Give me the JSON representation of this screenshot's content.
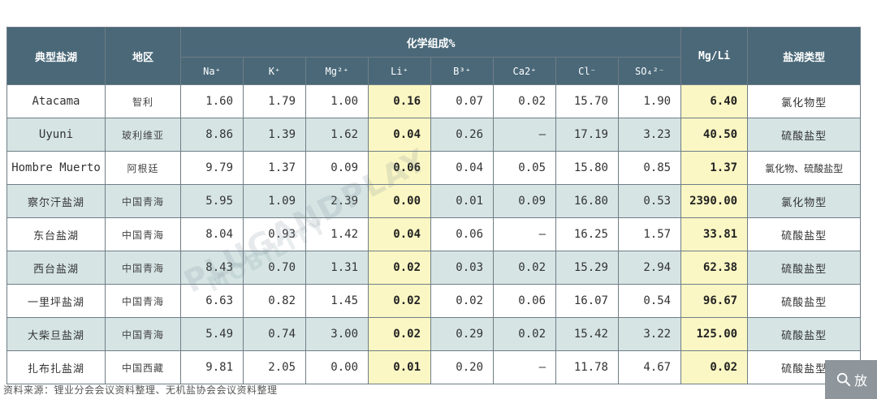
{
  "table": {
    "headers": {
      "type": "典型盐湖",
      "region": "地区",
      "composition_group": "化学组成%",
      "ratio": "Mg/Li",
      "lake_type": "盐湖类型",
      "components": [
        "Na⁺",
        "K⁺",
        "Mg²⁺",
        "Li⁺",
        "B³⁺",
        "Ca2⁺",
        "Cl⁻",
        "SO₄²⁻"
      ]
    },
    "rows": [
      {
        "name": "Atacama",
        "region": "智利",
        "values": [
          "1.60",
          "1.79",
          "1.00",
          "0.16",
          "0.07",
          "0.02",
          "15.70",
          "1.90"
        ],
        "ratio": "6.40",
        "type": "氯化物型"
      },
      {
        "name": "Uyuni",
        "region": "玻利维亚",
        "values": [
          "8.86",
          "1.39",
          "1.62",
          "0.04",
          "0.26",
          "–",
          "17.19",
          "3.23"
        ],
        "ratio": "40.50",
        "type": "硫酸盐型"
      },
      {
        "name": "Hombre Muerto",
        "region": "阿根廷",
        "values": [
          "9.79",
          "1.37",
          "0.09",
          "0.06",
          "0.04",
          "0.05",
          "15.80",
          "0.85"
        ],
        "ratio": "1.37",
        "type": "氯化物、硫酸盐型"
      },
      {
        "name": "察尔汗盐湖",
        "region": "中国青海",
        "values": [
          "5.95",
          "1.09",
          "2.39",
          "0.00",
          "0.01",
          "0.09",
          "16.80",
          "0.53"
        ],
        "ratio": "2390.00",
        "type": "氯化物型"
      },
      {
        "name": "东台盐湖",
        "region": "中国青海",
        "values": [
          "8.04",
          "0.93",
          "1.42",
          "0.04",
          "0.06",
          "–",
          "16.25",
          "1.57"
        ],
        "ratio": "33.81",
        "type": "硫酸盐型"
      },
      {
        "name": "西台盐湖",
        "region": "中国青海",
        "values": [
          "8.43",
          "0.70",
          "1.31",
          "0.02",
          "0.03",
          "0.02",
          "15.29",
          "2.94"
        ],
        "ratio": "62.38",
        "type": "硫酸盐型"
      },
      {
        "name": "一里坪盐湖",
        "region": "中国青海",
        "values": [
          "6.63",
          "0.82",
          "1.45",
          "0.02",
          "0.02",
          "0.06",
          "16.07",
          "0.54"
        ],
        "ratio": "96.67",
        "type": "硫酸盐型"
      },
      {
        "name": "大柴旦盐湖",
        "region": "中国青海",
        "values": [
          "5.49",
          "0.74",
          "3.00",
          "0.02",
          "0.29",
          "0.02",
          "15.42",
          "3.22"
        ],
        "ratio": "125.00",
        "type": "硫酸盐型"
      },
      {
        "name": "扎布扎盐湖",
        "region": "中国西藏",
        "values": [
          "9.81",
          "2.05",
          "0.00",
          "0.01",
          "0.20",
          "–",
          "11.78",
          "4.67"
        ],
        "ratio": "0.02",
        "type": "硫酸盐型"
      }
    ]
  },
  "source_note": "资料来源：锂业分会会议资料整理、无机盐协会会议资料整理",
  "watermark": {
    "line1": "PLUGANDPLAY",
    "line2": "MOBILITY"
  },
  "zoom_button": {
    "label": "放"
  },
  "colors": {
    "header_bg": "#4a6878",
    "row_alt": "#d6e5e4",
    "highlight": "#fbf7c4"
  }
}
